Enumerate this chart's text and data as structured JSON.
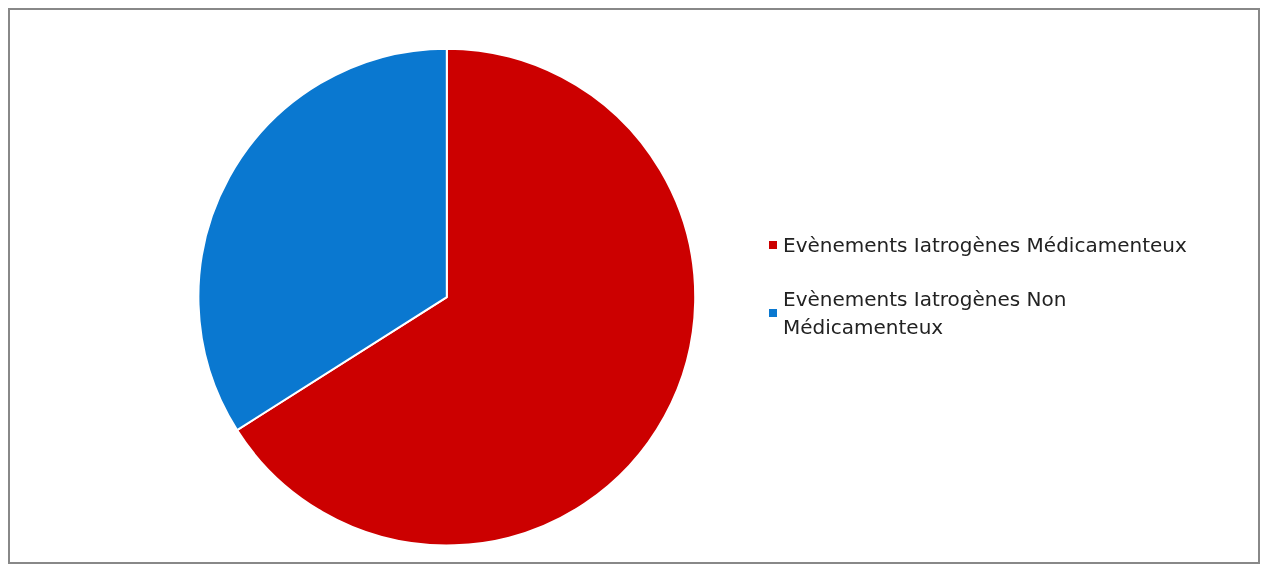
{
  "chart_data": {
    "type": "pie",
    "categories": [
      "Evènements Iatrogènes Médicamenteux",
      "Evènements Iatrogènes Non Médicamenteux"
    ],
    "values": [
      66,
      34
    ],
    "colors": [
      "#cc0000",
      "#0a78d0"
    ],
    "legend": "right"
  }
}
